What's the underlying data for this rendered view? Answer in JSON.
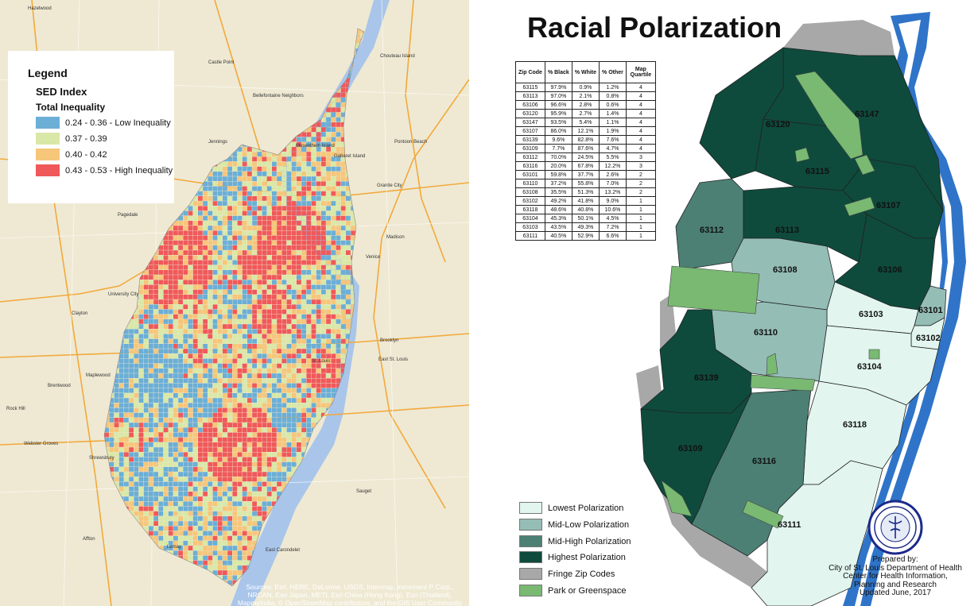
{
  "left_map": {
    "legend": {
      "title": "Legend",
      "index_name": "SED Index",
      "subtitle": "Total Inequality",
      "classes": [
        {
          "label": "0.24 - 0.36 - Low Inequality",
          "color": "#6baed6"
        },
        {
          "label": "0.37 - 0.39",
          "color": "#d9e8a7"
        },
        {
          "label": "0.40 - 0.42",
          "color": "#f6c67a"
        },
        {
          "label": "0.43 - 0.53 - High Inequality",
          "color": "#f0595a"
        }
      ]
    },
    "sources": "Sources: Esri, HERE, DeLorme, USGS, Intermap, increment P Corp., NRCAN, Esri Japan, METI, Esri China (Hong Kong), Esri (Thailand), MapmyIndia, © OpenStreetMap contributors, and the GIS User Community",
    "places": [
      "Hazelwood",
      "Castle Point",
      "Bellefontaine Neighbors",
      "Jennings",
      "Mosenthein Island",
      "Gabaret Island",
      "Granite City",
      "Madison",
      "Venice",
      "Pagedale",
      "University City",
      "Clayton",
      "Brooklyn",
      "East St. Louis",
      "Maplewood",
      "Brentwood",
      "Rock Hill",
      "Webster Groves",
      "Shrewsbury",
      "Affton",
      "East Carondelet",
      "Sauget",
      "Lemay",
      "St. Louis",
      "Pontoon Beach",
      "Chouteau Island"
    ],
    "colors": {
      "water": "#a9c5ea",
      "land": "#efe9d3",
      "road": "#f2a93b"
    }
  },
  "right_map": {
    "title": "Racial Polarization",
    "table": {
      "headers": [
        "Zip Code",
        "% Black",
        "% White",
        "% Other",
        "Map Quartile"
      ],
      "rows": [
        [
          "63115",
          "97.9%",
          "0.9%",
          "1.2%",
          "4"
        ],
        [
          "63113",
          "97.0%",
          "2.1%",
          "0.8%",
          "4"
        ],
        [
          "63106",
          "96.6%",
          "2.8%",
          "0.6%",
          "4"
        ],
        [
          "63120",
          "95.9%",
          "2.7%",
          "1.4%",
          "4"
        ],
        [
          "63147",
          "93.5%",
          "5.4%",
          "1.1%",
          "4"
        ],
        [
          "63107",
          "86.0%",
          "12.1%",
          "1.9%",
          "4"
        ],
        [
          "63139",
          "9.6%",
          "82.8%",
          "7.6%",
          "4"
        ],
        [
          "63109",
          "7.7%",
          "87.6%",
          "4.7%",
          "4"
        ],
        [
          "63112",
          "70.0%",
          "24.5%",
          "5.5%",
          "3"
        ],
        [
          "63116",
          "20.0%",
          "67.8%",
          "12.2%",
          "3"
        ],
        [
          "63101",
          "59.8%",
          "37.7%",
          "2.6%",
          "2"
        ],
        [
          "63110",
          "37.2%",
          "55.8%",
          "7.0%",
          "2"
        ],
        [
          "63108",
          "35.5%",
          "51.3%",
          "13.2%",
          "2"
        ],
        [
          "63102",
          "49.2%",
          "41.8%",
          "9.0%",
          "1"
        ],
        [
          "63118",
          "48.6%",
          "40.8%",
          "10.6%",
          "1"
        ],
        [
          "63104",
          "45.3%",
          "50.1%",
          "4.5%",
          "1"
        ],
        [
          "63103",
          "43.5%",
          "49.3%",
          "7.2%",
          "1"
        ],
        [
          "63111",
          "40.5%",
          "52.9%",
          "6.6%",
          "1"
        ]
      ]
    },
    "zip_labels": [
      "63147",
      "63120",
      "63115",
      "63107",
      "63112",
      "63113",
      "63106",
      "63108",
      "63101",
      "63103",
      "63102",
      "63110",
      "63104",
      "63139",
      "63118",
      "63109",
      "63116",
      "63111"
    ],
    "legend": [
      {
        "label": "Lowest Polarization",
        "color": "#e2f5ef"
      },
      {
        "label": "Mid-Low Polarization",
        "color": "#94bdb6"
      },
      {
        "label": "Mid-High Polarization",
        "color": "#4c8074"
      },
      {
        "label": "Highest Polarization",
        "color": "#0e4b3c"
      },
      {
        "label": "Fringe Zip Codes",
        "color": "#a8a8a8"
      },
      {
        "label": "Park or Greenspace",
        "color": "#79b972"
      }
    ],
    "seal_text": "DEPARTMENT OF HEALTH · CITY OF ST. LOUIS",
    "prepared": [
      "Prepared by:",
      "City of St. Louis Department of Health",
      "Center for Health Information,",
      "Planning and Research",
      "Updated June, 2017"
    ],
    "colors": {
      "river": "#2f74c8",
      "outside": "#7f7f7f"
    }
  }
}
